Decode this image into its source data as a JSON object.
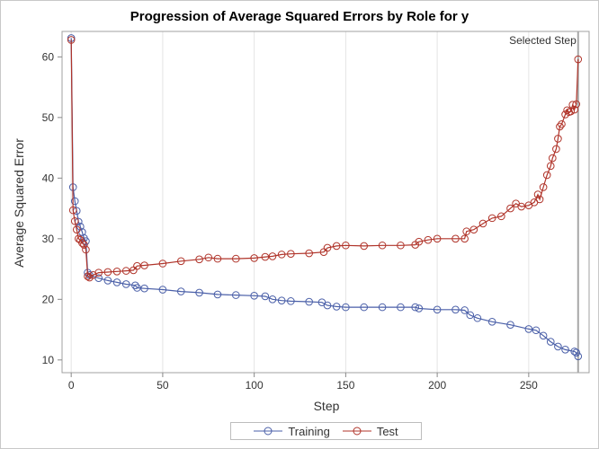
{
  "chart_data": {
    "type": "line",
    "title": "Progression of Average Squared Errors by Role for y",
    "xlabel": "Step",
    "ylabel": "Average Squared Error",
    "xlim": [
      -5,
      283
    ],
    "ylim": [
      7.9,
      64.2
    ],
    "xticks": [
      0,
      50,
      100,
      150,
      200,
      250
    ],
    "yticks": [
      10,
      20,
      30,
      40,
      50,
      60
    ],
    "grid": "vertical",
    "legend_position": "bottom",
    "reference_line": {
      "x": 277,
      "label": "Selected Step"
    },
    "colors": {
      "Training": "#4a5fa8",
      "Test": "#b0342a"
    },
    "series": [
      {
        "name": "Training",
        "x": [
          0,
          1,
          2,
          3,
          4,
          5,
          6,
          7,
          8,
          9,
          10,
          15,
          20,
          25,
          30,
          35,
          36,
          40,
          50,
          60,
          70,
          80,
          90,
          100,
          106,
          110,
          115,
          120,
          130,
          137,
          140,
          145,
          150,
          160,
          170,
          180,
          188,
          190,
          200,
          210,
          215,
          218,
          222,
          230,
          240,
          250,
          254,
          258,
          262,
          266,
          270,
          275,
          276,
          277
        ],
        "y": [
          63.1,
          38.5,
          36.2,
          34.6,
          32.8,
          32.0,
          31.1,
          30.1,
          29.6,
          24.4,
          24.0,
          23.5,
          23.1,
          22.8,
          22.5,
          22.3,
          21.9,
          21.8,
          21.6,
          21.3,
          21.1,
          20.8,
          20.7,
          20.6,
          20.5,
          20.0,
          19.8,
          19.7,
          19.6,
          19.5,
          19.0,
          18.8,
          18.7,
          18.7,
          18.7,
          18.7,
          18.7,
          18.5,
          18.3,
          18.3,
          18.2,
          17.4,
          16.9,
          16.3,
          15.8,
          15.1,
          14.9,
          14.0,
          13.0,
          12.2,
          11.7,
          11.4,
          11.2,
          10.6
        ]
      },
      {
        "name": "Test",
        "x": [
          0,
          1,
          2,
          3,
          4,
          5,
          6,
          7,
          8,
          9,
          10,
          12,
          15,
          20,
          25,
          30,
          34,
          36,
          40,
          50,
          60,
          70,
          75,
          80,
          90,
          100,
          106,
          110,
          115,
          120,
          130,
          138,
          140,
          145,
          150,
          160,
          170,
          180,
          188,
          190,
          195,
          200,
          210,
          215,
          216,
          220,
          225,
          230,
          235,
          240,
          243,
          246,
          250,
          253,
          255,
          256,
          258,
          260,
          262,
          263,
          265,
          266,
          267,
          268,
          270,
          271,
          272,
          273,
          274,
          275,
          276,
          277
        ],
        "y": [
          62.8,
          34.7,
          32.9,
          31.5,
          30.0,
          29.8,
          29.3,
          29.0,
          28.2,
          23.8,
          23.6,
          24.0,
          24.4,
          24.5,
          24.6,
          24.7,
          24.8,
          25.5,
          25.6,
          25.9,
          26.3,
          26.6,
          26.9,
          26.7,
          26.7,
          26.8,
          27.0,
          27.1,
          27.4,
          27.5,
          27.6,
          27.8,
          28.5,
          28.8,
          28.9,
          28.8,
          28.9,
          28.9,
          29.0,
          29.5,
          29.8,
          30.0,
          30.0,
          30.0,
          31.2,
          31.5,
          32.5,
          33.4,
          33.7,
          35.0,
          35.8,
          35.3,
          35.5,
          36.0,
          37.3,
          36.5,
          38.5,
          40.5,
          42.0,
          43.3,
          44.8,
          46.5,
          48.5,
          48.9,
          50.5,
          51.2,
          50.9,
          51.0,
          52.1,
          51.3,
          52.2,
          59.6
        ]
      }
    ]
  }
}
